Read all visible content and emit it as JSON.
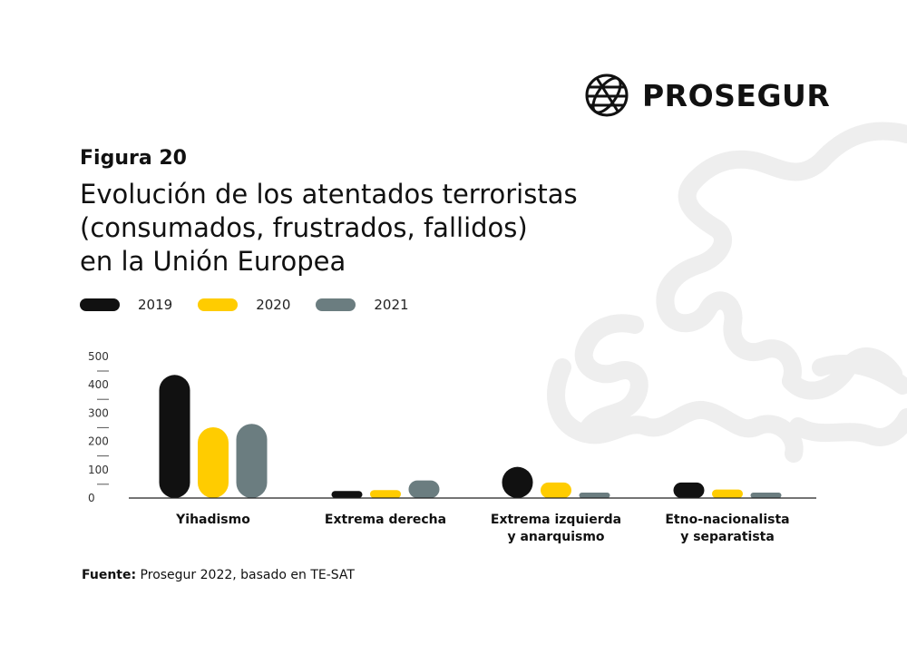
{
  "brand": {
    "name": "PROSEGUR",
    "logo_icon": "globe-icon"
  },
  "figure": {
    "label": "Figura 20",
    "title_lines": [
      "Evolución de los atentados terroristas",
      "(consumados, frustrados, fallidos)",
      "en la Unión Europea"
    ]
  },
  "source": {
    "label": "Fuente:",
    "text": " Prosegur 2022, basado en TE-SAT"
  },
  "chart_data": {
    "type": "bar",
    "title": "",
    "xlabel": "",
    "ylabel": "",
    "categories": [
      "Yihadismo",
      "Extrema derecha",
      "Extrema izquierda\ny anarquismo",
      "Etno-nacionalista\ny separatista"
    ],
    "series": [
      {
        "name": "2019",
        "color": "#111111",
        "values": [
          435,
          25,
          110,
          55
        ]
      },
      {
        "name": "2020",
        "color": "#FFCC00",
        "values": [
          250,
          28,
          55,
          30
        ]
      },
      {
        "name": "2021",
        "color": "#6B7D80",
        "values": [
          262,
          62,
          15,
          18
        ]
      }
    ],
    "ylim": [
      0,
      500
    ],
    "yticks": [
      0,
      100,
      200,
      300,
      400,
      500
    ],
    "legend": "top-left",
    "grid": false
  }
}
